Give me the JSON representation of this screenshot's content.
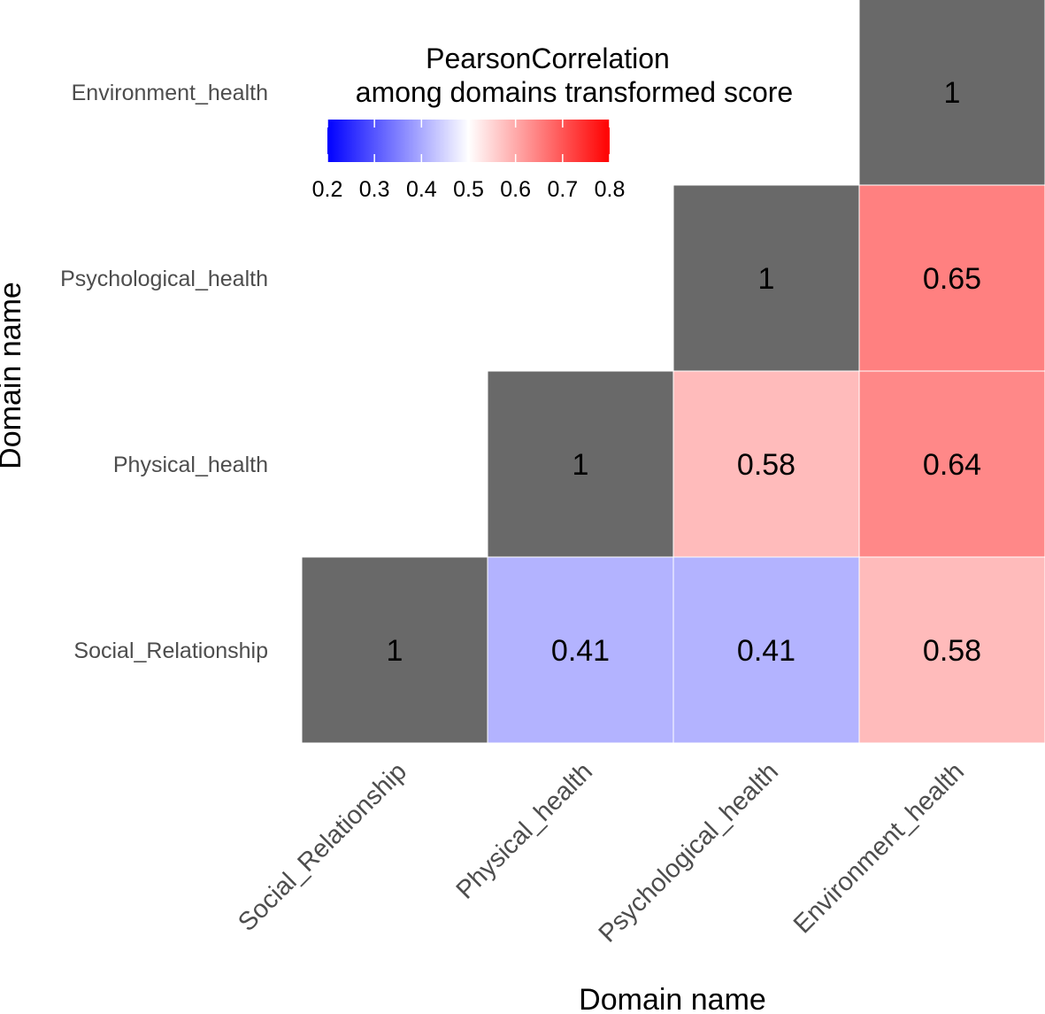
{
  "chart_data": {
    "type": "heatmap",
    "title": "",
    "xlabel": "Domain name",
    "ylabel": "Domain name",
    "x_categories": [
      "Social_Relationship",
      "Physical_health",
      "Psychological_health",
      "Environment_health"
    ],
    "y_categories": [
      "Social_Relationship",
      "Physical_health",
      "Psychological_health",
      "Environment_health"
    ],
    "cells": [
      {
        "x": "Social_Relationship",
        "y": "Social_Relationship",
        "value": 1,
        "label": "1"
      },
      {
        "x": "Physical_health",
        "y": "Social_Relationship",
        "value": 0.41,
        "label": "0.41"
      },
      {
        "x": "Psychological_health",
        "y": "Social_Relationship",
        "value": 0.41,
        "label": "0.41"
      },
      {
        "x": "Environment_health",
        "y": "Social_Relationship",
        "value": 0.58,
        "label": "0.58"
      },
      {
        "x": "Physical_health",
        "y": "Physical_health",
        "value": 1,
        "label": "1"
      },
      {
        "x": "Psychological_health",
        "y": "Physical_health",
        "value": 0.58,
        "label": "0.58"
      },
      {
        "x": "Environment_health",
        "y": "Physical_health",
        "value": 0.64,
        "label": "0.64"
      },
      {
        "x": "Psychological_health",
        "y": "Psychological_health",
        "value": 1,
        "label": "1"
      },
      {
        "x": "Environment_health",
        "y": "Psychological_health",
        "value": 0.65,
        "label": "0.65"
      },
      {
        "x": "Environment_health",
        "y": "Environment_health",
        "value": 1,
        "label": "1"
      }
    ],
    "legend": {
      "title_lines": [
        "PearsonCorrelation",
        "among domains transformed score"
      ],
      "range": [
        0.2,
        0.8
      ],
      "midpoint": 0.5,
      "ticks": [
        "0.2",
        "0.3",
        "0.4",
        "0.5",
        "0.6",
        "0.7",
        "0.8"
      ],
      "placement": "top-left"
    },
    "colors": {
      "low": "#0000ff",
      "mid": "#ffffff",
      "high": "#ff0000",
      "out_of_range": "#696969",
      "grid_line": "#ffffff"
    }
  }
}
